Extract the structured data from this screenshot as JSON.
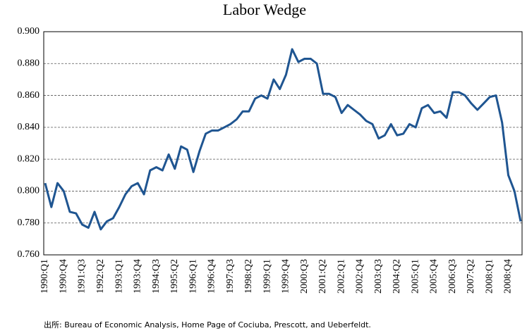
{
  "chart_data": {
    "type": "line",
    "title": "Labor Wedge",
    "source": "出所: Bureau of Economic Analysis, Home Page of Cociuba, Prescott, and Ueberfeldt.",
    "categories": [
      "1990:Q1",
      null,
      null,
      "1990:Q4",
      null,
      null,
      "1991:Q3",
      null,
      null,
      "1992:Q2",
      null,
      null,
      "1993:Q1",
      null,
      null,
      "1993:Q4",
      null,
      null,
      "1994:Q3",
      null,
      null,
      "1995:Q2",
      null,
      null,
      "1996:Q1",
      null,
      null,
      "1996:Q4",
      null,
      null,
      "1997:Q3",
      null,
      null,
      "1998:Q2",
      null,
      null,
      "1999:Q1",
      null,
      null,
      "1999:Q4",
      null,
      null,
      "2000:Q3",
      null,
      null,
      "2001:Q2",
      null,
      null,
      "2002:Q1",
      null,
      null,
      "2002:Q4",
      null,
      null,
      "2003:Q3",
      null,
      null,
      "2004:Q2",
      null,
      null,
      "2005:Q1",
      null,
      null,
      "2005:Q4",
      null,
      null,
      "2006:Q3",
      null,
      null,
      "2007:Q2",
      null,
      null,
      "2008:Q1",
      null,
      null,
      "2008:Q4",
      null,
      null
    ],
    "series": [
      {
        "color": "#1f5591",
        "values": [
          0.805,
          0.79,
          0.805,
          0.8,
          0.787,
          0.786,
          0.779,
          0.777,
          0.787,
          0.776,
          0.781,
          0.783,
          0.79,
          0.798,
          0.803,
          0.805,
          0.798,
          0.813,
          0.815,
          0.813,
          0.823,
          0.814,
          0.828,
          0.826,
          0.812,
          0.825,
          0.836,
          0.838,
          0.838,
          0.84,
          0.842,
          0.845,
          0.85,
          0.85,
          0.858,
          0.86,
          0.858,
          0.87,
          0.864,
          0.873,
          0.889,
          0.881,
          0.883,
          0.883,
          0.88,
          0.861,
          0.861,
          0.859,
          0.849,
          0.854,
          0.851,
          0.848,
          0.844,
          0.842,
          0.833,
          0.835,
          0.842,
          0.835,
          0.836,
          0.842,
          0.84,
          0.852,
          0.854,
          0.849,
          0.85,
          0.846,
          0.862,
          0.862,
          0.86,
          0.855,
          0.851,
          0.855,
          0.859,
          0.86,
          0.843,
          0.81,
          0.8,
          0.781
        ]
      }
    ],
    "ylim": [
      0.76,
      0.9
    ],
    "yticks": [
      {
        "value": 0.76,
        "label": "0.760"
      },
      {
        "value": 0.78,
        "label": "0.780"
      },
      {
        "value": 0.8,
        "label": "0.800"
      },
      {
        "value": 0.82,
        "label": "0.820"
      },
      {
        "value": 0.84,
        "label": "0.840"
      },
      {
        "value": 0.86,
        "label": "0.860"
      },
      {
        "value": 0.88,
        "label": "0.880"
      },
      {
        "value": 0.9,
        "label": "0.900"
      }
    ],
    "grid": true
  }
}
